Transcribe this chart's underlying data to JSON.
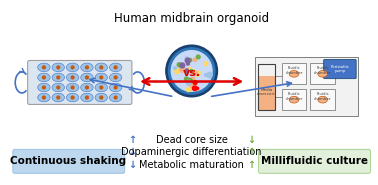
{
  "title": "Human midbrain organoid",
  "left_label": "Continuous shaking",
  "right_label": "Millifluidic culture",
  "vs_text": "vs.",
  "metrics": [
    "Dead core size",
    "Dopaminergic differentiation",
    "Metabolic maturation"
  ],
  "left_arrows": [
    "↑",
    "↓",
    "↓"
  ],
  "right_arrows": [
    "↓",
    "↑",
    "↑"
  ],
  "left_arrow_color": "#4472c4",
  "right_arrow_color": "#70ad47",
  "vs_color": "#e00000",
  "flow_arrow_color": "#4472c4",
  "bg_color": "#ffffff",
  "left_box_color": "#bdd7ee",
  "right_box_color": "#e2efda",
  "organoid_dark": "#1a3f6f",
  "organoid_mid": "#2e75b6",
  "organoid_light": "#c9daf8",
  "text_color": "#000000",
  "title_fontsize": 8.5,
  "label_fontsize": 7.5,
  "metric_fontsize": 7,
  "arrow_fontsize": 7
}
